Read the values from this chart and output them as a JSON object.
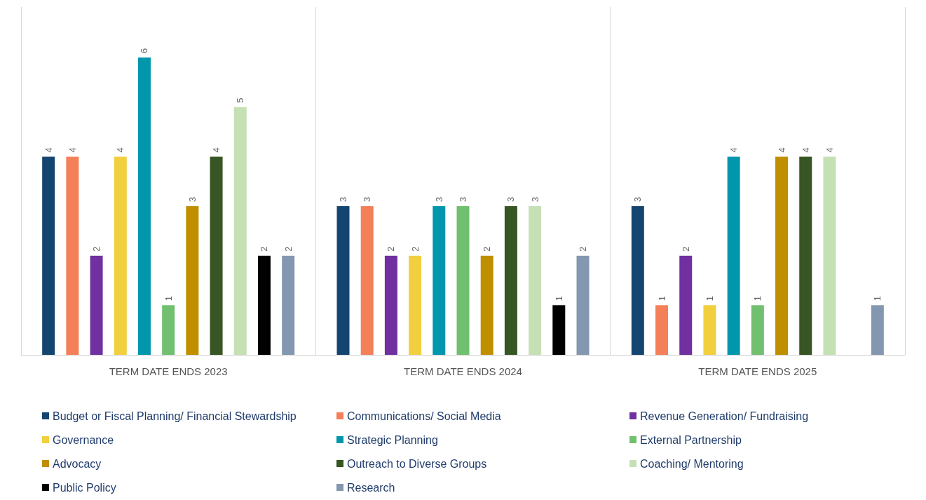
{
  "chart_data": {
    "type": "bar",
    "categories": [
      "TERM DATE ENDS 2023",
      "TERM DATE ENDS 2024",
      "TERM DATE ENDS 2025"
    ],
    "series": [
      {
        "name": "Budget or Fiscal Planning/ Financial Stewardship",
        "color": "#144570",
        "values": [
          4,
          3,
          3
        ]
      },
      {
        "name": "Communications/ Social Media",
        "color": "#f4805a",
        "values": [
          4,
          3,
          1
        ]
      },
      {
        "name": "Revenue Generation/ Fundraising",
        "color": "#7030a0",
        "values": [
          2,
          2,
          2
        ]
      },
      {
        "name": "Governance",
        "color": "#f2cf3e",
        "values": [
          4,
          2,
          1
        ]
      },
      {
        "name": "Strategic Planning",
        "color": "#0097ad",
        "values": [
          6,
          3,
          4
        ]
      },
      {
        "name": "External Partnership",
        "color": "#70c070",
        "values": [
          1,
          3,
          1
        ]
      },
      {
        "name": "Advocacy",
        "color": "#bf8f00",
        "values": [
          3,
          2,
          4
        ]
      },
      {
        "name": "Outreach to Diverse Groups",
        "color": "#375623",
        "values": [
          4,
          3,
          4
        ]
      },
      {
        "name": "Coaching/ Mentoring",
        "color": "#c5e0b4",
        "values": [
          5,
          3,
          4
        ]
      },
      {
        "name": "Public Policy",
        "color": "#000000",
        "values": [
          2,
          1,
          null
        ]
      },
      {
        "name": "Research",
        "color": "#8497b0",
        "values": [
          2,
          2,
          1
        ]
      }
    ],
    "data_labels": true,
    "legend": "bottom",
    "grid": "x"
  }
}
